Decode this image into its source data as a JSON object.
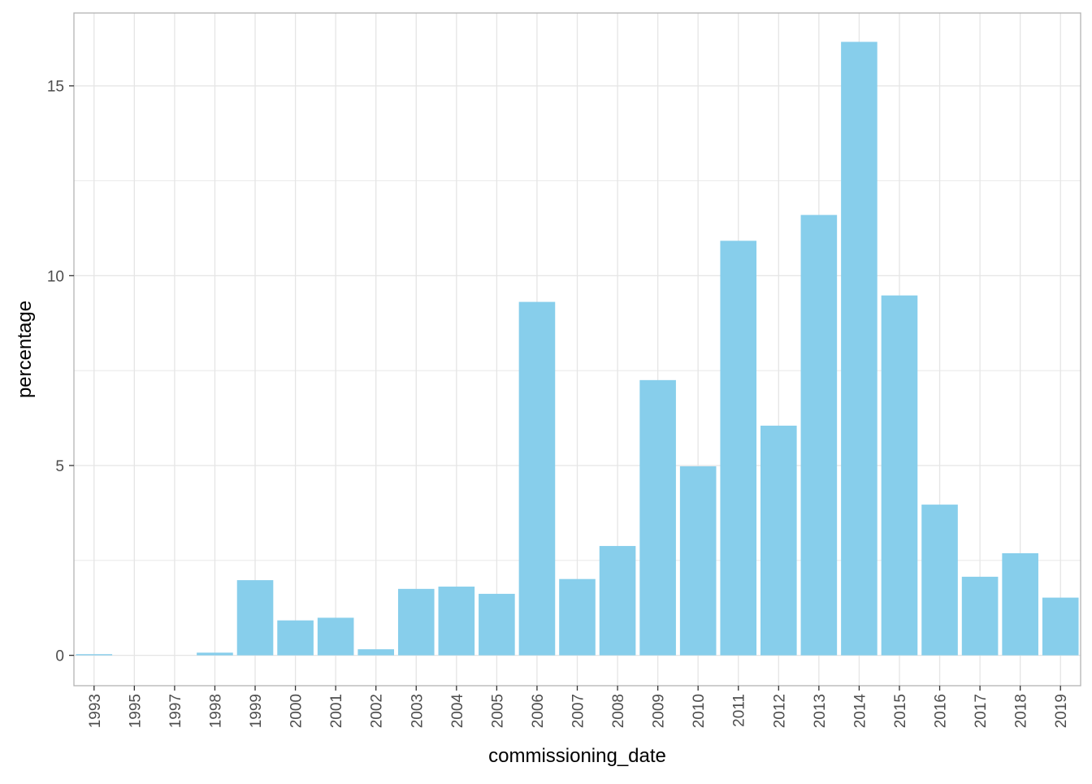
{
  "chart_data": {
    "type": "bar",
    "xlabel": "commissioning_date",
    "ylabel": "percentage",
    "categories": [
      "1993",
      "1995",
      "1997",
      "1998",
      "1999",
      "2000",
      "2001",
      "2002",
      "2003",
      "2004",
      "2005",
      "2006",
      "2007",
      "2008",
      "2009",
      "2010",
      "2011",
      "2012",
      "2013",
      "2014",
      "2015",
      "2016",
      "2017",
      "2018",
      "2019"
    ],
    "values": [
      0.03,
      0.0,
      0.0,
      0.07,
      1.98,
      0.92,
      0.99,
      0.16,
      1.75,
      1.81,
      1.62,
      9.31,
      2.01,
      2.88,
      7.25,
      4.98,
      10.92,
      6.05,
      11.6,
      16.16,
      9.48,
      3.97,
      2.07,
      2.69,
      1.52
    ],
    "ylim": [
      -0.8,
      16.92
    ],
    "yticks": [
      0,
      5,
      10,
      15
    ],
    "ytick_labels": [
      "0",
      "5",
      "10",
      "15"
    ],
    "y_minor_ticks": [
      2.5,
      7.5,
      12.5
    ],
    "grid": true,
    "bar_color": "#87CEEB",
    "grid_color": "#e5e5e5",
    "panel_border_color": "#b3b3b3",
    "theme": "light"
  }
}
